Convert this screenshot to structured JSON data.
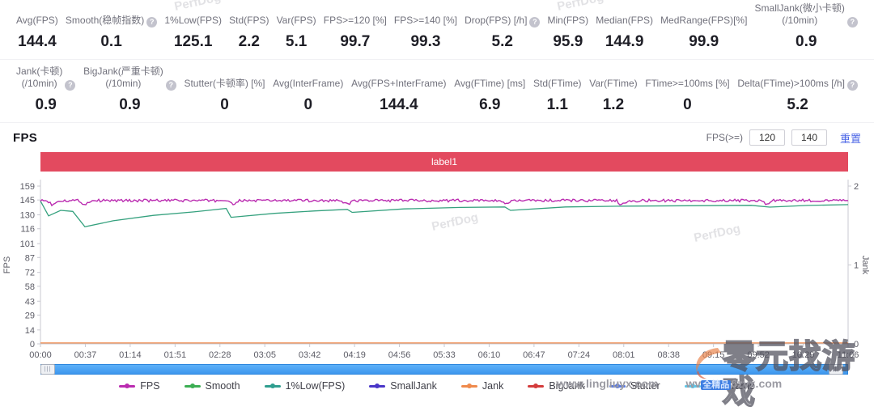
{
  "icons": {
    "info": "?",
    "scroll_grip": "|||"
  },
  "metrics_row1": [
    {
      "label": "Avg(FPS)",
      "value": "144.4",
      "info": false
    },
    {
      "label": "Smooth(稳帧指数)",
      "value": "0.1",
      "info": true
    },
    {
      "label": "1%Low(FPS)",
      "value": "125.1",
      "info": false
    },
    {
      "label": "Std(FPS)",
      "value": "2.2",
      "info": false
    },
    {
      "label": "Var(FPS)",
      "value": "5.1",
      "info": false
    },
    {
      "label": "FPS>=120 [%]",
      "value": "99.7",
      "info": false
    },
    {
      "label": "FPS>=140 [%]",
      "value": "99.3",
      "info": false
    },
    {
      "label": "Drop(FPS) [/h]",
      "value": "5.2",
      "info": true
    },
    {
      "label": "Min(FPS)",
      "value": "95.9",
      "info": false
    },
    {
      "label": "Median(FPS)",
      "value": "144.9",
      "info": false
    },
    {
      "label": "MedRange(FPS)[%]",
      "value": "99.9",
      "info": false
    },
    {
      "label": "SmallJank(微小卡顿)\n(/10min)",
      "value": "0.9",
      "info": true
    }
  ],
  "metrics_row2": [
    {
      "label": "Jank(卡顿)\n(/10min)",
      "value": "0.9",
      "info": true
    },
    {
      "label": "BigJank(严重卡顿)\n(/10min)",
      "value": "0.9",
      "info": true
    },
    {
      "label": "Stutter(卡顿率) [%]",
      "value": "0",
      "info": false
    },
    {
      "label": "Avg(InterFrame)",
      "value": "0",
      "info": false
    },
    {
      "label": "Avg(FPS+InterFrame)",
      "value": "144.4",
      "info": false
    },
    {
      "label": "Avg(FTime) [ms]",
      "value": "6.9",
      "info": false
    },
    {
      "label": "Std(FTime)",
      "value": "1.1",
      "info": false
    },
    {
      "label": "Var(FTime)",
      "value": "1.2",
      "info": false
    },
    {
      "label": "FTime>=100ms [%]",
      "value": "0",
      "info": false
    },
    {
      "label": "Delta(FTime)>100ms [/h]",
      "value": "5.2",
      "info": true
    }
  ],
  "fps_section": {
    "title": "FPS",
    "filter_label": "FPS(>=)",
    "threshold1": "120",
    "threshold2": "140",
    "reset_label": "重置"
  },
  "chart_data": {
    "type": "line",
    "title": "label1",
    "header_color": "#e34a5f",
    "x_ticks": [
      "00:00",
      "00:37",
      "01:14",
      "01:51",
      "02:28",
      "03:05",
      "03:42",
      "04:19",
      "04:56",
      "05:33",
      "06:10",
      "06:47",
      "07:24",
      "08:01",
      "08:38",
      "09:15",
      "09:52",
      "10:29",
      "11:06"
    ],
    "left_axis": {
      "label": "FPS",
      "range": [
        0,
        159
      ],
      "ticks": [
        0,
        14,
        29,
        43,
        58,
        72,
        87,
        101,
        116,
        130,
        145,
        159
      ]
    },
    "right_axis": {
      "label": "Jank",
      "range": [
        0,
        2
      ],
      "ticks": [
        0,
        1,
        2
      ]
    },
    "grid": false,
    "series": [
      {
        "name": "Jank",
        "axis": "left",
        "color": "#ef8a4c",
        "style": "points",
        "points_pct": [
          [
            0,
            0.9
          ],
          [
            100,
            0.9
          ]
        ]
      },
      {
        "name": "1%Low(FPS)",
        "axis": "left",
        "color": "#35a17e",
        "style": "points",
        "points_pct": [
          [
            0,
            144
          ],
          [
            1,
            129
          ],
          [
            2.5,
            134.5
          ],
          [
            4,
            133.5
          ],
          [
            5.5,
            118
          ],
          [
            9,
            124
          ],
          [
            14,
            129.5
          ],
          [
            19,
            133
          ],
          [
            23,
            136.5
          ],
          [
            23.6,
            127.5
          ],
          [
            29,
            131.5
          ],
          [
            34,
            134
          ],
          [
            38,
            135.5
          ],
          [
            38.6,
            132.5
          ],
          [
            45,
            136
          ],
          [
            52,
            137.5
          ],
          [
            57.5,
            138
          ],
          [
            58.2,
            134.5
          ],
          [
            65,
            138
          ],
          [
            72,
            138.8
          ],
          [
            80,
            139.2
          ],
          [
            88,
            139.6
          ],
          [
            90.3,
            137.8
          ],
          [
            95,
            139.5
          ],
          [
            100,
            140.3
          ]
        ]
      },
      {
        "name": "FPS",
        "axis": "left",
        "color": "#ba2bb0",
        "style": "noisy",
        "baseline": 144.4,
        "noise": 1.4,
        "dip_depth": 4.5,
        "dips_pct": [
          1.5,
          5.5,
          24,
          38,
          57.8,
          72,
          90
        ]
      }
    ]
  },
  "legend": {
    "items": [
      {
        "name": "FPS",
        "color": "#ba2bb0"
      },
      {
        "name": "Smooth",
        "color": "#3cae53"
      },
      {
        "name": "1%Low(FPS)",
        "color": "#2f9e8f"
      },
      {
        "name": "SmallJank",
        "color": "#4936c8"
      },
      {
        "name": "Jank",
        "color": "#ef8a4c"
      },
      {
        "name": "BigJank",
        "color": "#d43c3c"
      },
      {
        "name": "Stutter",
        "color": "#5b7be0"
      },
      {
        "name": "InterFrame",
        "color": "#5ec6e8"
      }
    ]
  },
  "watermarks": {
    "perfdog_text": "PerfDog",
    "logo_text": "零元找游戏",
    "url1": "www.lingliuyx.com",
    "url2_prefix": "wv",
    "url2_badge": "全精品",
    "url2_suffix": "6zyx.com"
  }
}
